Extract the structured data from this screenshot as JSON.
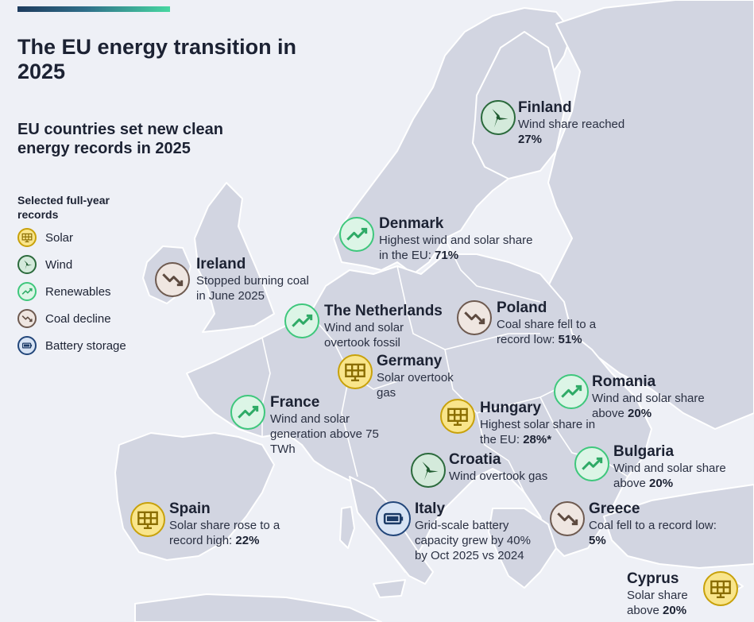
{
  "title": "The EU energy transition in 2025",
  "subtitle": "EU countries set new clean energy records in 2025",
  "legend": {
    "title": "Selected full-year records",
    "items": [
      {
        "label": "Solar",
        "icon": "solar-panel-icon"
      },
      {
        "label": "Wind",
        "icon": "wind-turbine-icon"
      },
      {
        "label": "Renewables",
        "icon": "trend-up-icon"
      },
      {
        "label": "Coal decline",
        "icon": "trend-down-icon"
      },
      {
        "label": "Battery storage",
        "icon": "battery-icon"
      }
    ]
  },
  "colors": {
    "solar": "#f9e58b",
    "wind": "#2b6a3c",
    "renewables": "#3ec77c",
    "coal": "#6e5a50",
    "battery": "#22467a",
    "land": "#d2d5e1",
    "sea": "#eef0f6"
  },
  "countries": {
    "finland": {
      "name": "Finland",
      "type": "wind",
      "desc": "Wind share reached ",
      "highlight": "27%"
    },
    "denmark": {
      "name": "Denmark",
      "type": "renewables",
      "desc": "Highest wind and solar share in the EU: ",
      "highlight": "71%"
    },
    "ireland": {
      "name": "Ireland",
      "type": "coal",
      "desc": "Stopped burning coal in June 2025",
      "highlight": ""
    },
    "netherlands": {
      "name": "The Netherlands",
      "type": "renewables",
      "desc": "Wind and solar overtook fossil",
      "highlight": ""
    },
    "poland": {
      "name": "Poland",
      "type": "coal",
      "desc": "Coal share fell to a record low: ",
      "highlight": "51%"
    },
    "germany": {
      "name": "Germany",
      "type": "solar",
      "desc": "Solar overtook gas",
      "highlight": ""
    },
    "romania": {
      "name": "Romania",
      "type": "renewables",
      "desc": "Wind and solar share above ",
      "highlight": "20%"
    },
    "france": {
      "name": "France",
      "type": "renewables",
      "desc": "Wind and solar generation above 75 TWh",
      "highlight": ""
    },
    "hungary": {
      "name": "Hungary",
      "type": "solar",
      "desc": "Highest solar share in the EU: ",
      "highlight": "28%*"
    },
    "croatia": {
      "name": "Croatia",
      "type": "wind",
      "desc": "Wind overtook gas",
      "highlight": ""
    },
    "bulgaria": {
      "name": "Bulgaria",
      "type": "renewables",
      "desc": "Wind and solar share above ",
      "highlight": "20%"
    },
    "spain": {
      "name": "Spain",
      "type": "solar",
      "desc": "Solar share rose to a record high: ",
      "highlight": "22%"
    },
    "italy": {
      "name": "Italy",
      "type": "battery",
      "desc": "Grid-scale battery capacity grew by 40% by Oct 2025 vs 2024",
      "highlight": ""
    },
    "greece": {
      "name": "Greece",
      "type": "coal",
      "desc": "Coal fell to a record low: ",
      "highlight": "5%"
    },
    "cyprus": {
      "name": "Cyprus",
      "type": "solar",
      "desc": "Solar share above ",
      "highlight": "20%"
    }
  }
}
